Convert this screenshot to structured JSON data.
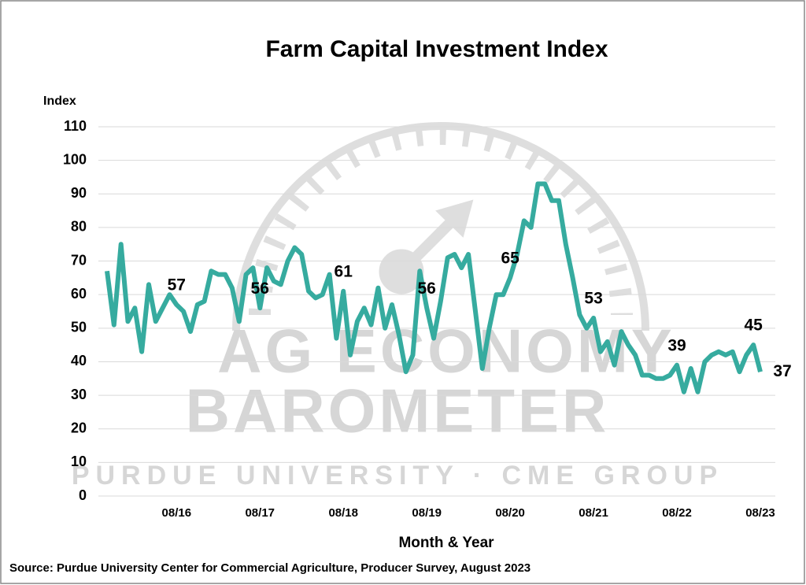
{
  "chart_data": {
    "type": "line",
    "title": "Farm Capital Investment Index",
    "y_axis_label": "Index",
    "x_axis_label": "Month & Year",
    "source": "Source: Purdue University Center for Commercial Agriculture, Producer Survey, August 2023",
    "watermark": [
      "AG ECONOMY",
      "BAROMETER",
      "PURDUE UNIVERSITY · CME GROUP"
    ],
    "categories": [
      null,
      null,
      null,
      null,
      null,
      null,
      null,
      null,
      null,
      null,
      "08/16",
      null,
      null,
      null,
      null,
      null,
      null,
      null,
      null,
      null,
      null,
      null,
      "08/17",
      null,
      null,
      null,
      null,
      null,
      null,
      null,
      null,
      null,
      null,
      null,
      "08/18",
      null,
      null,
      null,
      null,
      null,
      null,
      null,
      null,
      null,
      null,
      null,
      "08/19",
      null,
      null,
      null,
      null,
      null,
      null,
      null,
      null,
      null,
      null,
      null,
      "08/20",
      null,
      null,
      null,
      null,
      null,
      null,
      null,
      null,
      null,
      null,
      null,
      "08/21",
      null,
      null,
      null,
      null,
      null,
      null,
      null,
      null,
      null,
      null,
      null,
      "08/22",
      null,
      null,
      null,
      null,
      null,
      null,
      null,
      null,
      null,
      null,
      null,
      "08/23"
    ],
    "series": [
      {
        "name": "Farm Capital Investment Index",
        "color": "#36ab9f",
        "values": [
          67,
          51,
          75,
          52,
          56,
          43,
          63,
          52,
          56,
          60,
          57,
          55,
          49,
          57,
          58,
          67,
          66,
          66,
          62,
          52,
          66,
          68,
          56,
          68,
          64,
          63,
          70,
          74,
          72,
          61,
          59,
          60,
          66,
          47,
          61,
          42,
          52,
          56,
          51,
          62,
          50,
          57,
          48,
          37,
          42,
          67,
          56,
          47,
          58,
          71,
          72,
          68,
          72,
          55,
          38,
          50,
          60,
          60,
          65,
          72,
          82,
          80,
          93,
          93,
          88,
          88,
          75,
          65,
          54,
          50,
          53,
          43,
          46,
          39,
          49,
          45,
          42,
          36,
          36,
          35,
          35,
          36,
          39,
          31,
          38,
          31,
          40,
          42,
          43,
          42,
          43,
          37,
          42,
          45,
          37
        ],
        "value_labels": [
          null,
          null,
          null,
          null,
          null,
          null,
          null,
          null,
          null,
          null,
          "57",
          null,
          null,
          null,
          null,
          null,
          null,
          null,
          null,
          null,
          null,
          null,
          "56",
          null,
          null,
          null,
          null,
          null,
          null,
          null,
          null,
          null,
          null,
          null,
          "61",
          null,
          null,
          null,
          null,
          null,
          null,
          null,
          null,
          null,
          null,
          null,
          "56",
          null,
          null,
          null,
          null,
          null,
          null,
          null,
          null,
          null,
          null,
          null,
          "65",
          null,
          null,
          null,
          null,
          null,
          null,
          null,
          null,
          null,
          null,
          null,
          "53",
          null,
          null,
          null,
          null,
          null,
          null,
          null,
          null,
          null,
          null,
          null,
          "39",
          null,
          null,
          null,
          null,
          null,
          null,
          null,
          null,
          null,
          null,
          "45",
          "37"
        ]
      }
    ],
    "ylim": [
      0,
      110
    ],
    "yticks": [
      0,
      10,
      20,
      30,
      40,
      50,
      60,
      70,
      80,
      90,
      100,
      110
    ],
    "grid": true
  }
}
